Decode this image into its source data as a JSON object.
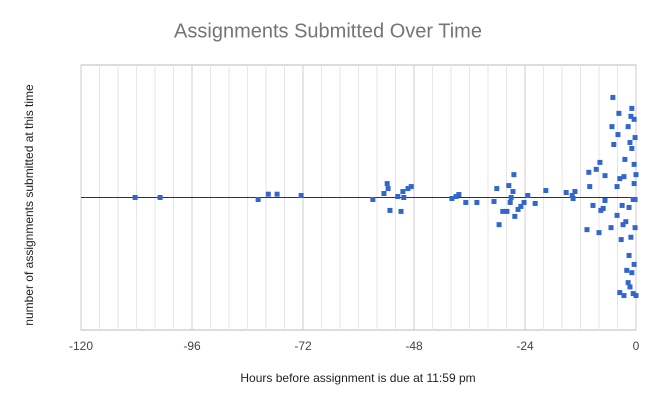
{
  "chart_data": {
    "type": "scatter",
    "title": "Assignments Submitted Over Time",
    "xlabel": "Hours before assignment is due at 11:59 pm",
    "ylabel": "number of assignments submitted at this time",
    "color": "#3366cc",
    "xlim": [
      -120,
      0
    ],
    "xticks": [
      -120,
      -96,
      -72,
      -48,
      -24,
      0
    ],
    "minor_xticks": [
      -116,
      -112,
      -108,
      -104,
      -100,
      -92,
      -88,
      -84,
      -80,
      -76,
      -68,
      -64,
      -60,
      -56,
      -52,
      -44,
      -40,
      -36,
      -32,
      -28,
      -20,
      -16,
      -12,
      -8,
      -4
    ],
    "ylim": [
      -4,
      4
    ],
    "grid": true,
    "x": [
      -108.3,
      -102.9,
      -81.7,
      -79.5,
      -77.6,
      -72.4,
      -56.9,
      -54.5,
      -53.8,
      -53.6,
      -53.2,
      -51.5,
      -50.8,
      -50.4,
      -50.2,
      -49.3,
      -48.6,
      -39.8,
      -38.9,
      -38.3,
      -36.8,
      -34.4,
      -30.7,
      -30.1,
      -29.6,
      -28.8,
      -27.9,
      -27.5,
      -27.2,
      -27.0,
      -26.6,
      -26.4,
      -26.2,
      -25.5,
      -24.9,
      -24.2,
      -23.4,
      -21.8,
      -19.5,
      -15.1,
      -13.8,
      -13.6,
      -13.2,
      -10.6,
      -10.2,
      -10.0,
      -9.3,
      -8.6,
      -8.0,
      -7.8,
      -7.6,
      -7.1,
      -6.7,
      -6.7,
      -5.4,
      -5.2,
      -5.0,
      -4.8,
      -4.1,
      -4.1,
      -3.9,
      -3.7,
      -3.5,
      -3.5,
      -3.2,
      -3.0,
      -2.8,
      -2.6,
      -2.6,
      -2.4,
      -2.2,
      -2.0,
      -1.7,
      -1.7,
      -1.5,
      -1.5,
      -1.3,
      -1.3,
      -1.1,
      -1.1,
      -0.9,
      -0.9,
      -0.9,
      -0.6,
      -0.6,
      -0.4,
      -0.4,
      -0.4,
      -0.4,
      -0.2,
      -0.2,
      -0.2,
      0,
      0
    ],
    "y": [
      0,
      0,
      -0.06,
      0.1,
      0.1,
      0.06,
      -0.06,
      0.12,
      0.42,
      0.27,
      -0.39,
      0.03,
      -0.42,
      0.18,
      0,
      0.27,
      0.33,
      -0.03,
      0.03,
      0.09,
      -0.15,
      -0.15,
      -0.12,
      0.27,
      -0.82,
      -0.42,
      -0.42,
      0.36,
      -0.15,
      0,
      0.18,
      0.69,
      -0.57,
      -0.36,
      -0.27,
      -0.15,
      0.06,
      -0.18,
      0.21,
      0.15,
      0.06,
      -0.03,
      0.18,
      -0.97,
      0.76,
      0.33,
      -0.24,
      0.85,
      -1.06,
      1.06,
      -0.39,
      -0.33,
      -0.09,
      0.66,
      -0.91,
      2.14,
      3.02,
      1.6,
      -0.54,
      0.33,
      1.9,
      2.54,
      0.57,
      -2.87,
      -1.27,
      -0.24,
      -0.82,
      0.63,
      -2.96,
      1.15,
      -0.73,
      -2.2,
      2.14,
      -2.57,
      -0.3,
      -1.75,
      1.66,
      -2.7,
      2.45,
      -1.2,
      2.69,
      1.48,
      -2.27,
      -0.06,
      -2.9,
      2.36,
      1.0,
      0.42,
      -2.02,
      1.81,
      -0.06,
      -0.91,
      0.69,
      -2.96
    ]
  }
}
